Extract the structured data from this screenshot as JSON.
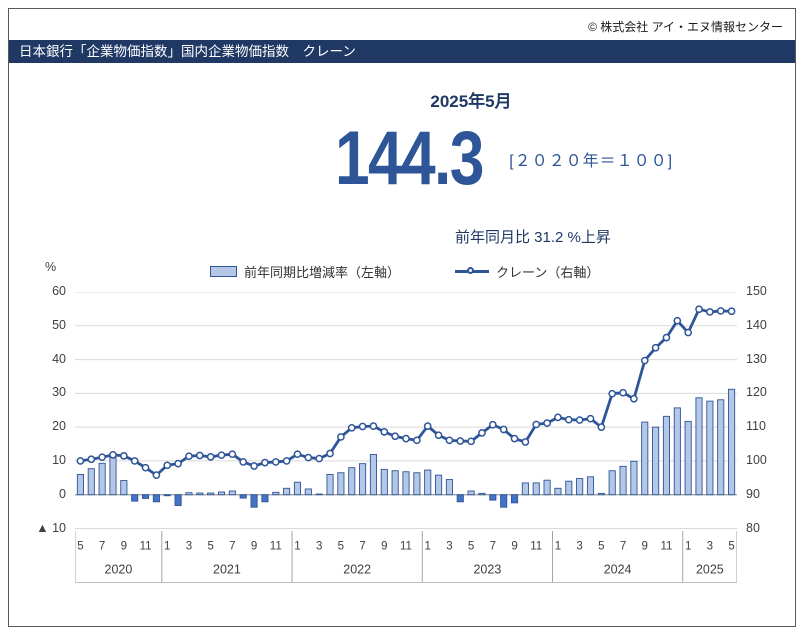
{
  "page": {
    "copyright": "© 株式会社 アイ・エヌ情報センター"
  },
  "header": {
    "title": "日本銀行「企業物価指数」国内企業物価指数　クレーン"
  },
  "summary": {
    "date": "2025年5月",
    "value": "144.3",
    "base_note": "[２０２０年＝１００]",
    "yoy_note": "前年同月比 31.2 %上昇"
  },
  "legend": {
    "bar_label": "前年同期比増減率（左軸）",
    "line_label": "クレーン（右軸）"
  },
  "colors": {
    "titlebar_bg": "#1f3864",
    "heading_text": "#1f3864",
    "accent_blue": "#2e5597",
    "line": "#2e5597",
    "bar_fill_positive": "#b4c7e7",
    "bar_fill_negative": "#4472c4",
    "bar_border": "#2e5597",
    "grid": "#d9d9d9",
    "zero_line": "#9a9a9a",
    "axis_text": "#404040",
    "divider": "#a6a6a6"
  },
  "chart_data": {
    "type": "bar+line",
    "unit_left": "%",
    "start_month": "2020-05",
    "axis_left": {
      "min": -10,
      "max": 60,
      "ticks": [
        "60",
        "50",
        "40",
        "30",
        "20",
        "10",
        "0",
        "▲ 10"
      ]
    },
    "axis_right": {
      "min": 80,
      "max": 150,
      "ticks": [
        "150",
        "140",
        "130",
        "120",
        "110",
        "100",
        "90",
        "80"
      ]
    },
    "x_years": [
      {
        "year": "2020",
        "tick_months": [
          5,
          7,
          9,
          11
        ],
        "n_months": 8,
        "first_month": 5
      },
      {
        "year": "2021",
        "tick_months": [
          1,
          3,
          5,
          7,
          9,
          11
        ],
        "n_months": 12,
        "first_month": 1
      },
      {
        "year": "2022",
        "tick_months": [
          1,
          3,
          5,
          7,
          9,
          11
        ],
        "n_months": 12,
        "first_month": 1
      },
      {
        "year": "2023",
        "tick_months": [
          1,
          3,
          5,
          7,
          9,
          11
        ],
        "n_months": 12,
        "first_month": 1
      },
      {
        "year": "2024",
        "tick_months": [
          1,
          3,
          5,
          7,
          9,
          11
        ],
        "n_months": 12,
        "first_month": 1
      },
      {
        "year": "2025",
        "tick_months": [
          1,
          3,
          5
        ],
        "n_months": 5,
        "first_month": 1
      }
    ],
    "series": [
      {
        "name": "前年同期比増減率（左軸）",
        "type": "bar",
        "axis": "left",
        "values": [
          6.0,
          7.7,
          9.3,
          11.0,
          4.2,
          -1.9,
          -1.1,
          -2.1,
          -0.3,
          -3.2,
          0.6,
          0.5,
          0.5,
          0.8,
          1.1,
          -1.0,
          -3.7,
          -2.1,
          0.7,
          1.9,
          3.7,
          1.7,
          0.2,
          6.0,
          6.5,
          8.0,
          9.2,
          11.9,
          7.5,
          7.1,
          6.8,
          6.5,
          7.3,
          5.8,
          4.5,
          -2.1,
          1.1,
          0.4,
          -1.6,
          -3.7,
          -2.4,
          3.5,
          3.5,
          4.3,
          1.9,
          4.0,
          4.8,
          5.3,
          0.4,
          7.1,
          8.4,
          9.9,
          21.5,
          20.0,
          23.2,
          25.7,
          21.7,
          28.7,
          27.7,
          28.1,
          31.2
        ]
      },
      {
        "name": "クレーン（右軸）",
        "type": "line",
        "axis": "right",
        "values": [
          100.0,
          100.5,
          101.1,
          101.8,
          101.5,
          100.0,
          98.0,
          95.8,
          98.7,
          99.2,
          101.4,
          101.6,
          101.2,
          101.7,
          102.0,
          99.7,
          98.5,
          99.5,
          99.7,
          100.0,
          102.0,
          101.0,
          100.7,
          102.2,
          107.1,
          109.8,
          110.2,
          110.3,
          108.6,
          107.3,
          106.6,
          106.1,
          110.3,
          107.6,
          106.1,
          105.9,
          105.8,
          108.3,
          110.7,
          109.3,
          106.6,
          105.6,
          110.8,
          111.2,
          112.9,
          112.2,
          112.1,
          112.5,
          110.0,
          119.9,
          120.2,
          118.4,
          129.7,
          133.5,
          136.5,
          141.5,
          138.0,
          144.9,
          144.1,
          144.4,
          144.3
        ]
      }
    ]
  }
}
